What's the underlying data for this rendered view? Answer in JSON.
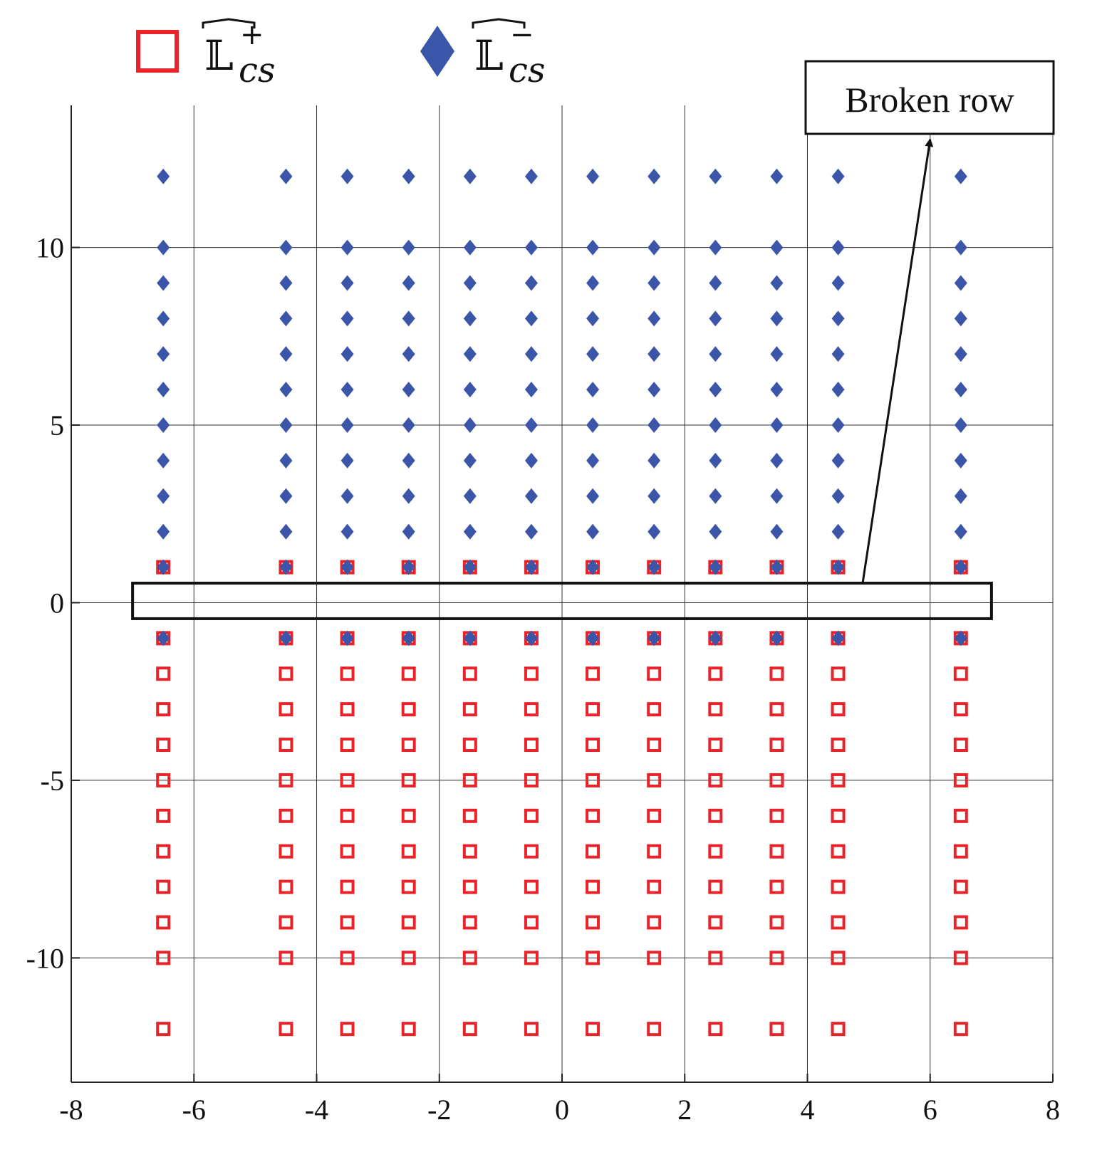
{
  "chart_data": {
    "type": "scatter",
    "xlim": [
      -8,
      8
    ],
    "ylim": [
      -13.5,
      14
    ],
    "x_ticks": [
      -8,
      -6,
      -4,
      -2,
      0,
      2,
      4,
      6,
      8
    ],
    "y_ticks": [
      -10,
      -5,
      0,
      5,
      10
    ],
    "x_tick_labels": [
      "-8",
      "-6",
      "-4",
      "-2",
      "0",
      "2",
      "4",
      "6",
      "8"
    ],
    "y_tick_labels": [
      "-10",
      "-5",
      "0",
      "5",
      "10"
    ],
    "grid": true,
    "legend_position": "top-left",
    "legend": [
      {
        "letter": "𝕃",
        "hat": true,
        "sub": "cs",
        "sup": "+",
        "marker": "open-square",
        "color": "#e8232a"
      },
      {
        "letter": "𝕃",
        "hat": true,
        "sub": "cs",
        "sup": "−",
        "marker": "filled-diamond",
        "color": "#3b55a8"
      }
    ],
    "columns_x": [
      -6.5,
      -4.5,
      -3.5,
      -2.5,
      -1.5,
      -0.5,
      0.5,
      1.5,
      2.5,
      3.5,
      4.5,
      6.5
    ],
    "series": [
      {
        "marker": "open-square",
        "color": "#e8232a",
        "y_values_per_column": [
          1,
          -1,
          -2,
          -3,
          -4,
          -5,
          -6,
          -7,
          -8,
          -9,
          -10,
          -12
        ]
      },
      {
        "marker": "filled-diamond",
        "color": "#3b55a8",
        "y_values_per_column": [
          12,
          10,
          9,
          8,
          7,
          6,
          5,
          4,
          3,
          2,
          1,
          -1
        ]
      }
    ],
    "annotations": [
      {
        "text": "Broken row",
        "highlight_box": {
          "x_range": [
            -7,
            7
          ],
          "y_range": [
            -0.45,
            0.55
          ]
        },
        "arrow_from": [
          4.9,
          0.55
        ],
        "arrow_to": [
          6.0,
          13.2
        ]
      }
    ]
  }
}
